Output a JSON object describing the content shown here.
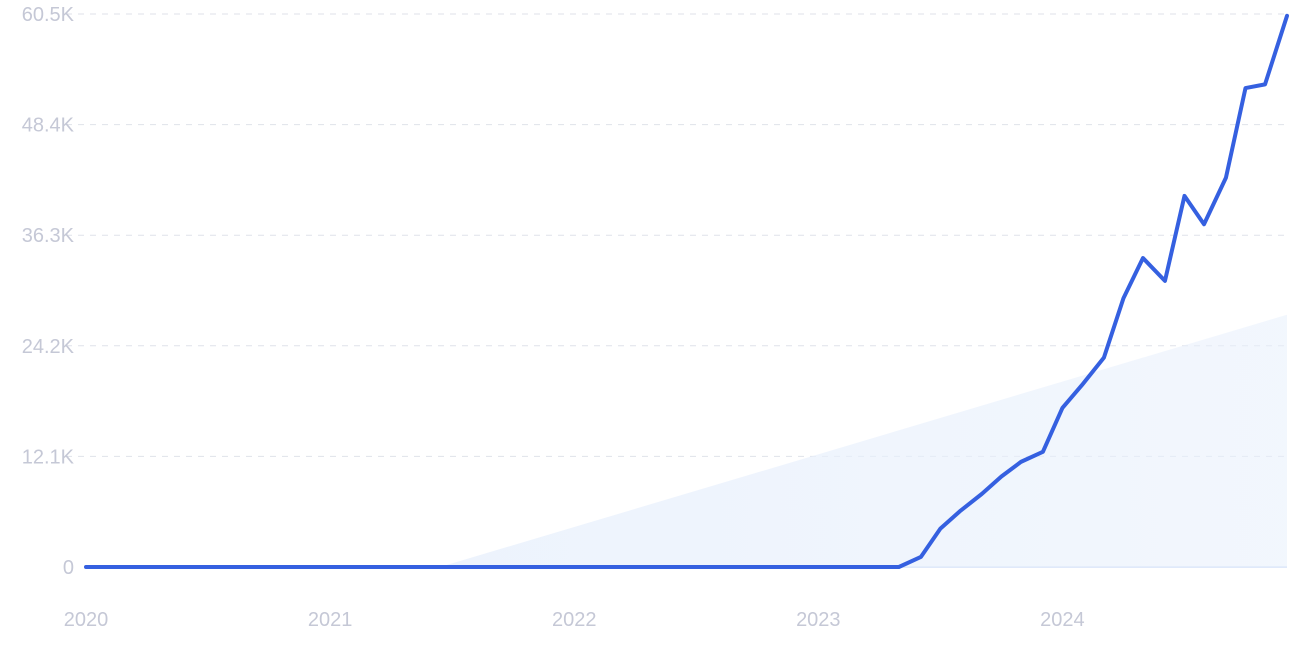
{
  "chart_data": {
    "type": "line",
    "title": "",
    "xlabel": "",
    "ylabel": "",
    "grid": true,
    "legend": "none",
    "x_ticks": [
      "2020",
      "2021",
      "2022",
      "2023",
      "2024"
    ],
    "y_ticks": [
      "0",
      "12.1K",
      "24.2K",
      "36.3K",
      "48.4K",
      "60.5K"
    ],
    "xlim": [
      2020.0,
      2024.92
    ],
    "ylim": [
      0,
      60500
    ],
    "colors": {
      "line": "#3560e0",
      "trend_fill": "#e8f0fc"
    },
    "series": [
      {
        "x": [
          2020.0,
          2021.0,
          2022.0,
          2023.0,
          2023.33,
          2023.42,
          2023.5,
          2023.58,
          2023.67,
          2023.75,
          2023.83,
          2023.92,
          2024.0,
          2024.08,
          2024.17,
          2024.25,
          2024.33,
          2024.42,
          2024.5,
          2024.58,
          2024.67,
          2024.75,
          2024.83,
          2024.92
        ],
        "values": [
          0,
          0,
          0,
          0,
          0,
          1100,
          4200,
          6100,
          8000,
          9900,
          11500,
          12600,
          17400,
          19900,
          22900,
          29400,
          33800,
          31300,
          40600,
          37500,
          42600,
          52400,
          52800,
          60300
        ]
      }
    ],
    "trend_area": {
      "x": [
        2021.45,
        2024.92
      ],
      "values": [
        0,
        27600
      ]
    }
  }
}
